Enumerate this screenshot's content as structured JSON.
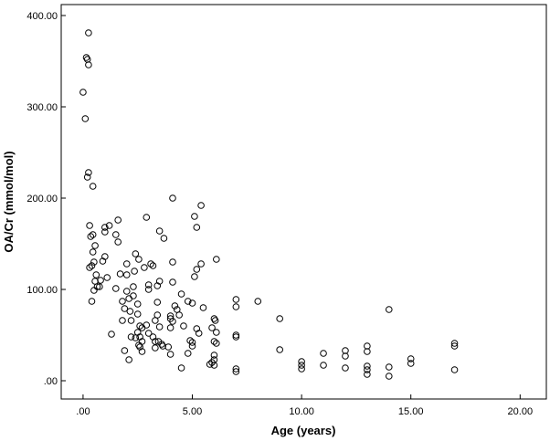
{
  "chart_data": {
    "type": "scatter",
    "xlabel": "Age (years)",
    "ylabel": "OA/Cr (mmol/mol)",
    "xlim": [
      -1,
      21.2
    ],
    "ylim": [
      -20,
      412
    ],
    "x_ticks": [
      0,
      5,
      10,
      15,
      20
    ],
    "x_tick_labels": [
      ".00",
      "5.00",
      "10.00",
      "15.00",
      "20.00"
    ],
    "y_ticks": [
      0,
      100,
      200,
      300,
      400
    ],
    "y_tick_labels": [
      ".00",
      "100.00",
      "200.00",
      "300.00",
      "400.00"
    ],
    "grid": false,
    "legend": "none",
    "marker": "open-circle",
    "marker_color": "#000000",
    "background": "#ffffff",
    "points": [
      [
        0.0,
        316
      ],
      [
        0.1,
        287
      ],
      [
        0.15,
        354
      ],
      [
        0.2,
        352
      ],
      [
        0.25,
        346
      ],
      [
        0.25,
        381
      ],
      [
        0.2,
        223
      ],
      [
        0.25,
        228
      ],
      [
        0.45,
        213
      ],
      [
        0.3,
        170
      ],
      [
        0.35,
        158
      ],
      [
        0.45,
        160
      ],
      [
        0.3,
        124
      ],
      [
        0.4,
        126
      ],
      [
        0.5,
        130
      ],
      [
        0.45,
        141
      ],
      [
        0.55,
        148
      ],
      [
        0.4,
        87
      ],
      [
        0.5,
        99
      ],
      [
        0.55,
        109
      ],
      [
        0.6,
        116
      ],
      [
        0.65,
        103
      ],
      [
        0.75,
        103
      ],
      [
        0.8,
        110
      ],
      [
        0.9,
        131
      ],
      [
        1.0,
        136
      ],
      [
        1.0,
        163
      ],
      [
        1.0,
        168
      ],
      [
        1.1,
        113
      ],
      [
        1.2,
        170
      ],
      [
        1.3,
        51
      ],
      [
        1.5,
        160
      ],
      [
        1.6,
        176
      ],
      [
        1.6,
        152
      ],
      [
        1.5,
        101
      ],
      [
        1.7,
        117
      ],
      [
        1.8,
        66
      ],
      [
        1.8,
        87
      ],
      [
        1.9,
        33
      ],
      [
        1.9,
        79
      ],
      [
        2.0,
        98
      ],
      [
        2.0,
        116
      ],
      [
        2.0,
        128
      ],
      [
        2.1,
        90
      ],
      [
        2.1,
        23
      ],
      [
        2.15,
        76
      ],
      [
        2.2,
        48
      ],
      [
        2.2,
        66
      ],
      [
        2.3,
        93
      ],
      [
        2.3,
        103
      ],
      [
        2.35,
        120
      ],
      [
        2.4,
        139
      ],
      [
        2.4,
        47
      ],
      [
        2.5,
        53
      ],
      [
        2.5,
        73
      ],
      [
        2.5,
        84
      ],
      [
        2.55,
        39
      ],
      [
        2.55,
        133
      ],
      [
        2.6,
        48
      ],
      [
        2.6,
        60
      ],
      [
        2.6,
        37
      ],
      [
        2.7,
        32
      ],
      [
        2.7,
        58
      ],
      [
        2.7,
        43
      ],
      [
        2.8,
        124
      ],
      [
        2.9,
        179
      ],
      [
        2.9,
        61
      ],
      [
        3.0,
        52
      ],
      [
        3.0,
        105
      ],
      [
        3.0,
        100
      ],
      [
        3.1,
        128
      ],
      [
        3.2,
        126
      ],
      [
        3.2,
        48
      ],
      [
        3.3,
        36
      ],
      [
        3.3,
        66
      ],
      [
        3.3,
        43
      ],
      [
        3.4,
        86
      ],
      [
        3.4,
        104
      ],
      [
        3.4,
        72
      ],
      [
        3.45,
        43
      ],
      [
        3.5,
        164
      ],
      [
        3.5,
        59
      ],
      [
        3.5,
        109
      ],
      [
        3.6,
        40
      ],
      [
        3.65,
        38
      ],
      [
        3.7,
        156
      ],
      [
        3.9,
        37
      ],
      [
        4.0,
        29
      ],
      [
        4.0,
        71
      ],
      [
        4.0,
        58
      ],
      [
        4.0,
        68
      ],
      [
        4.1,
        108
      ],
      [
        4.1,
        130
      ],
      [
        4.1,
        200
      ],
      [
        4.1,
        65
      ],
      [
        4.2,
        82
      ],
      [
        4.3,
        78
      ],
      [
        4.4,
        72
      ],
      [
        4.5,
        14
      ],
      [
        4.5,
        95
      ],
      [
        4.6,
        60
      ],
      [
        4.8,
        87
      ],
      [
        4.8,
        30
      ],
      [
        4.9,
        44
      ],
      [
        5.0,
        85
      ],
      [
        5.0,
        38
      ],
      [
        5.0,
        42
      ],
      [
        5.1,
        114
      ],
      [
        5.1,
        180
      ],
      [
        5.2,
        122
      ],
      [
        5.2,
        168
      ],
      [
        5.2,
        57
      ],
      [
        5.3,
        52
      ],
      [
        5.4,
        192
      ],
      [
        5.4,
        128
      ],
      [
        5.5,
        80
      ],
      [
        5.8,
        18
      ],
      [
        5.9,
        20
      ],
      [
        5.9,
        58
      ],
      [
        6.0,
        68
      ],
      [
        6.0,
        43
      ],
      [
        6.0,
        28
      ],
      [
        6.0,
        23
      ],
      [
        6.0,
        17
      ],
      [
        6.05,
        66
      ],
      [
        6.1,
        133
      ],
      [
        6.1,
        53
      ],
      [
        6.1,
        41
      ],
      [
        7.0,
        89
      ],
      [
        7.0,
        81
      ],
      [
        7.0,
        50
      ],
      [
        7.0,
        48
      ],
      [
        7.0,
        13
      ],
      [
        7.0,
        10
      ],
      [
        8.0,
        87
      ],
      [
        9.0,
        68
      ],
      [
        9.0,
        34
      ],
      [
        10.0,
        21
      ],
      [
        10.0,
        17
      ],
      [
        10.0,
        13
      ],
      [
        11.0,
        30
      ],
      [
        11.0,
        17
      ],
      [
        12.0,
        33
      ],
      [
        12.0,
        27
      ],
      [
        12.0,
        14
      ],
      [
        13.0,
        38
      ],
      [
        13.0,
        32
      ],
      [
        13.0,
        16
      ],
      [
        13.0,
        12
      ],
      [
        13.0,
        7
      ],
      [
        14.0,
        78
      ],
      [
        14.0,
        15
      ],
      [
        14.0,
        5
      ],
      [
        15.0,
        24
      ],
      [
        15.0,
        19
      ],
      [
        17.0,
        41
      ],
      [
        17.0,
        38
      ],
      [
        17.0,
        12
      ]
    ]
  }
}
